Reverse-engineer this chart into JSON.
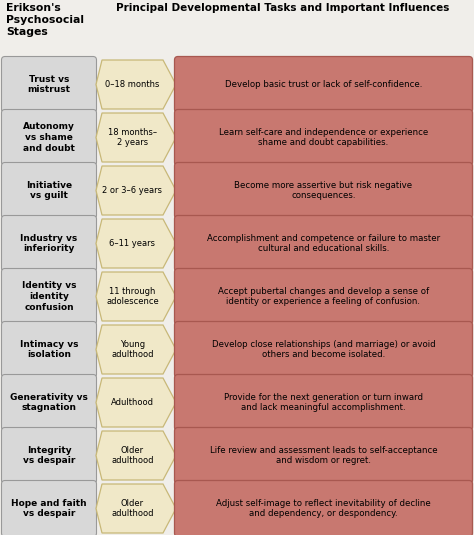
{
  "title_left": "Erikson's\nPsychosocial\nStages",
  "title_right": "Principal Developmental Tasks and Important Influences",
  "stages": [
    {
      "stage": "Trust vs\nmistrust",
      "age": "0–18 months",
      "task": "Develop basic trust or lack of self-confidence."
    },
    {
      "stage": "Autonomy\nvs shame\nand doubt",
      "age": "18 months–\n2 years",
      "task": "Learn self-care and independence or experience\nshame and doubt capabilities."
    },
    {
      "stage": "Initiative\nvs guilt",
      "age": "2 or 3–6 years",
      "task": "Become more assertive but risk negative\nconsequences."
    },
    {
      "stage": "Industry vs\ninferiority",
      "age": "6–11 years",
      "task": "Accomplishment and competence or failure to master\ncultural and educational skills."
    },
    {
      "stage": "Identity vs\nidentity\nconfusion",
      "age": "11 through\nadolescence",
      "task": "Accept pubertal changes and develop a sense of\nidentity or experience a feeling of confusion."
    },
    {
      "stage": "Intimacy vs\nisolation",
      "age": "Young\nadulthood",
      "task": "Develop close relationships (and marriage) or avoid\nothers and become isolated."
    },
    {
      "stage": "Generativity vs\nstagnation",
      "age": "Adulthood",
      "task": "Provide for the next generation or turn inward\nand lack meaningful accomplishment."
    },
    {
      "stage": "Integrity\nvs despair",
      "age": "Older\nadulthood",
      "task": "Life review and assessment leads to self-acceptance\nand wisdom or regret."
    },
    {
      "stage": "Hope and faith\nvs despair",
      "age": "Older\nadulthood",
      "task": "Adjust self-image to reflect inevitability of decline\nand dependency, or despondency."
    }
  ],
  "bg_color": "#f0eeea",
  "stage_box_fill": "#d8d8d8",
  "stage_box_edge": "#999999",
  "arrow_fill": "#f0e8c8",
  "arrow_edge": "#c8b878",
  "task_box_fill": "#c87870",
  "task_box_edge": "#a85850",
  "title_color": "#000000",
  "stage_text_color": "#000000",
  "age_text_color": "#000000",
  "task_text_color": "#000000",
  "figw": 4.74,
  "figh": 5.35,
  "dpi": 100
}
